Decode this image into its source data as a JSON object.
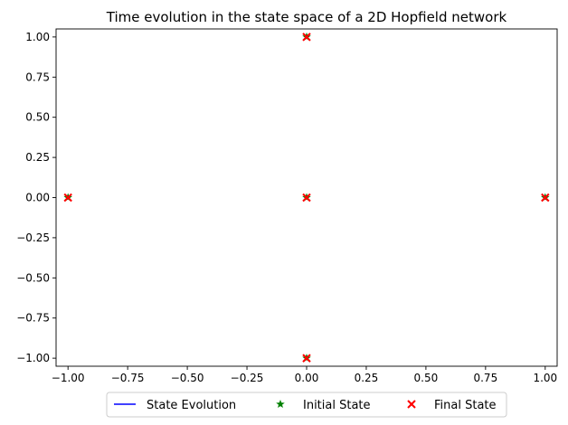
{
  "chart_data": {
    "type": "scatter",
    "title": "Time evolution in the state space of a 2D Hopfield network",
    "xlabel": "",
    "ylabel": "",
    "xlim": [
      -1.05,
      1.05
    ],
    "ylim": [
      -1.05,
      1.05
    ],
    "x_ticks": [
      -1.0,
      -0.75,
      -0.5,
      -0.25,
      0.0,
      0.25,
      0.5,
      0.75,
      1.0
    ],
    "x_tick_labels": [
      "−1.00",
      "−0.75",
      "−0.50",
      "−0.25",
      "0.00",
      "0.25",
      "0.50",
      "0.75",
      "1.00"
    ],
    "y_ticks": [
      1.0,
      0.75,
      0.5,
      0.25,
      0.0,
      -0.25,
      -0.5,
      -0.75,
      -1.0
    ],
    "y_tick_labels": [
      "1.00",
      "0.75",
      "0.50",
      "0.25",
      "0.00",
      "−0.25",
      "−0.50",
      "−0.75",
      "−1.00"
    ],
    "grid": false,
    "legend_position": "bottom-center",
    "series": [
      {
        "name": "State Evolution",
        "marker": "line",
        "color": "#0000ff",
        "points": [
          [
            0,
            1
          ],
          [
            -1,
            0
          ],
          [
            0,
            0
          ],
          [
            1,
            0
          ],
          [
            0,
            -1
          ]
        ]
      },
      {
        "name": "Initial State",
        "marker": "star",
        "color": "#008000",
        "points": [
          [
            0,
            1
          ],
          [
            -1,
            0
          ],
          [
            0,
            0
          ],
          [
            1,
            0
          ],
          [
            0,
            -1
          ]
        ]
      },
      {
        "name": "Final State",
        "marker": "x",
        "color": "#ff0000",
        "points": [
          [
            0,
            1
          ],
          [
            -1,
            0
          ],
          [
            0,
            0
          ],
          [
            1,
            0
          ],
          [
            0,
            -1
          ]
        ]
      }
    ]
  }
}
